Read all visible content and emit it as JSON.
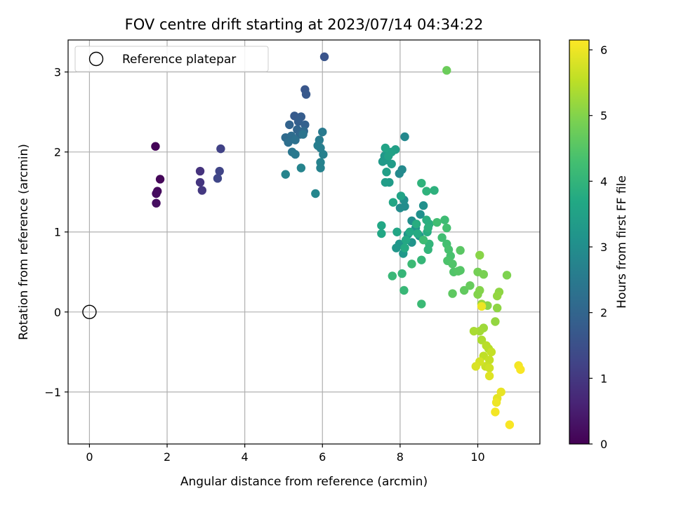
{
  "chart_data": {
    "type": "scatter",
    "title": "FOV centre drift starting at 2023/07/14 04:34:22",
    "xlabel": "Angular distance from reference (arcmin)",
    "ylabel": "Rotation from reference (arcmin)",
    "xlim": [
      -0.55,
      11.6
    ],
    "ylim": [
      -1.65,
      3.4
    ],
    "xticks": [
      0,
      2,
      4,
      6,
      8,
      10
    ],
    "xtick_labels": [
      "0",
      "2",
      "4",
      "6",
      "8",
      "10"
    ],
    "yticks": [
      -1,
      0,
      1,
      2,
      3
    ],
    "ytick_labels": [
      "−1",
      "0",
      "1",
      "2",
      "3"
    ],
    "grid": true,
    "legend": {
      "position": "top-left",
      "entries": [
        "Reference platepar"
      ]
    },
    "colorbar": {
      "label": "Hours from first FF file",
      "colormap": "viridis",
      "range": [
        0,
        6.15
      ],
      "ticks": [
        0,
        1,
        2,
        3,
        4,
        5,
        6
      ],
      "tick_labels": [
        "0",
        "1",
        "2",
        "3",
        "4",
        "5",
        "6"
      ]
    },
    "reference_point": {
      "x": 0,
      "y": 0,
      "name": "Reference platepar"
    },
    "series": [
      {
        "name": "FOV centre",
        "points": [
          [
            1.7,
            2.07,
            0.05
          ],
          [
            1.82,
            1.66,
            0.1
          ],
          [
            1.75,
            1.51,
            0.15
          ],
          [
            1.72,
            1.48,
            0.2
          ],
          [
            1.72,
            1.36,
            0.25
          ],
          [
            2.85,
            1.76,
            0.9
          ],
          [
            2.85,
            1.62,
            0.95
          ],
          [
            2.9,
            1.52,
            1.0
          ],
          [
            3.38,
            2.04,
            1.2
          ],
          [
            3.35,
            1.76,
            1.25
          ],
          [
            3.3,
            1.67,
            1.3
          ],
          [
            6.05,
            3.19,
            1.6
          ],
          [
            5.55,
            2.78,
            1.65
          ],
          [
            5.58,
            2.72,
            1.7
          ],
          [
            5.28,
            2.45,
            1.75
          ],
          [
            5.45,
            2.44,
            1.8
          ],
          [
            5.38,
            2.38,
            1.85
          ],
          [
            5.55,
            2.34,
            1.9
          ],
          [
            5.15,
            2.34,
            1.95
          ],
          [
            5.35,
            2.28,
            2.0
          ],
          [
            5.42,
            2.22,
            2.05
          ],
          [
            5.52,
            2.26,
            2.1
          ],
          [
            5.05,
            2.18,
            2.15
          ],
          [
            5.2,
            2.2,
            2.2
          ],
          [
            5.12,
            2.12,
            2.25
          ],
          [
            5.3,
            2.15,
            2.3
          ],
          [
            5.5,
            2.22,
            2.35
          ],
          [
            5.22,
            2.0,
            2.4
          ],
          [
            5.3,
            1.97,
            2.45
          ],
          [
            6.0,
            2.25,
            2.5
          ],
          [
            5.92,
            2.15,
            2.55
          ],
          [
            5.88,
            2.08,
            2.6
          ],
          [
            5.95,
            2.05,
            2.6
          ],
          [
            6.02,
            1.97,
            2.65
          ],
          [
            5.95,
            1.87,
            2.7
          ],
          [
            5.95,
            1.8,
            2.7
          ],
          [
            5.45,
            1.8,
            2.75
          ],
          [
            5.05,
            1.72,
            2.75
          ],
          [
            5.82,
            1.48,
            2.8
          ],
          [
            8.12,
            2.19,
            2.85
          ],
          [
            7.98,
            1.73,
            2.9
          ],
          [
            8.05,
            1.78,
            2.9
          ],
          [
            8.0,
            1.3,
            2.95
          ],
          [
            8.12,
            1.32,
            2.95
          ],
          [
            8.1,
            1.4,
            3.0
          ],
          [
            8.3,
            1.14,
            3.0
          ],
          [
            8.52,
            1.22,
            3.05
          ],
          [
            8.6,
            1.33,
            3.05
          ],
          [
            8.4,
            1.05,
            3.1
          ],
          [
            8.2,
            0.97,
            3.1
          ],
          [
            8.5,
            0.95,
            3.15
          ],
          [
            8.3,
            0.87,
            3.15
          ],
          [
            7.98,
            0.85,
            3.2
          ],
          [
            7.9,
            0.8,
            3.2
          ],
          [
            8.08,
            0.73,
            3.25
          ],
          [
            7.6,
            1.95,
            3.25
          ],
          [
            7.65,
            1.9,
            3.3
          ],
          [
            7.55,
            1.88,
            3.3
          ],
          [
            7.78,
            1.85,
            3.35
          ],
          [
            7.72,
            1.62,
            3.35
          ],
          [
            7.62,
            1.62,
            3.4
          ],
          [
            7.65,
            1.75,
            3.45
          ],
          [
            7.88,
            2.03,
            3.45
          ],
          [
            7.78,
            2.0,
            3.5
          ],
          [
            7.7,
            1.95,
            3.5
          ],
          [
            7.62,
            2.05,
            3.55
          ],
          [
            8.02,
            1.45,
            3.55
          ],
          [
            7.82,
            1.37,
            3.6
          ],
          [
            7.92,
            1.0,
            3.6
          ],
          [
            7.52,
            1.08,
            3.65
          ],
          [
            7.52,
            0.98,
            3.65
          ],
          [
            8.15,
            0.9,
            3.7
          ],
          [
            8.25,
            1.0,
            3.7
          ],
          [
            8.12,
            0.8,
            3.75
          ],
          [
            8.45,
            0.98,
            3.75
          ],
          [
            8.42,
            1.1,
            3.8
          ],
          [
            8.7,
            1.0,
            3.8
          ],
          [
            8.68,
            1.15,
            3.85
          ],
          [
            8.75,
            1.1,
            3.85
          ],
          [
            8.72,
            1.05,
            3.9
          ],
          [
            8.88,
            1.52,
            3.9
          ],
          [
            8.68,
            1.51,
            3.95
          ],
          [
            8.55,
            1.61,
            3.95
          ],
          [
            8.75,
            0.85,
            4.0
          ],
          [
            8.72,
            0.78,
            4.0
          ],
          [
            8.55,
            0.65,
            4.05
          ],
          [
            8.05,
            0.48,
            4.05
          ],
          [
            7.8,
            0.45,
            4.1
          ],
          [
            8.1,
            0.27,
            4.1
          ],
          [
            8.55,
            0.1,
            4.15
          ],
          [
            8.3,
            0.6,
            4.15
          ],
          [
            8.6,
            0.9,
            4.2
          ],
          [
            9.15,
            1.15,
            4.2
          ],
          [
            9.08,
            0.93,
            4.25
          ],
          [
            8.95,
            1.12,
            4.25
          ],
          [
            9.2,
            1.05,
            4.3
          ],
          [
            9.2,
            0.85,
            4.3
          ],
          [
            9.25,
            0.78,
            4.35
          ],
          [
            9.3,
            0.7,
            4.35
          ],
          [
            9.22,
            0.64,
            4.4
          ],
          [
            9.35,
            0.6,
            4.45
          ],
          [
            9.38,
            0.5,
            4.45
          ],
          [
            9.5,
            0.51,
            4.5
          ],
          [
            9.55,
            0.52,
            4.5
          ],
          [
            9.55,
            0.77,
            4.55
          ],
          [
            9.35,
            0.23,
            4.6
          ],
          [
            9.65,
            0.27,
            4.65
          ],
          [
            9.8,
            0.33,
            4.7
          ],
          [
            9.2,
            3.02,
            4.75
          ],
          [
            10.0,
            0.5,
            4.85
          ],
          [
            10.15,
            0.47,
            4.9
          ],
          [
            10.75,
            0.46,
            4.95
          ],
          [
            10.0,
            0.22,
            5.0
          ],
          [
            10.05,
            0.27,
            5.0
          ],
          [
            10.25,
            0.08,
            5.05
          ],
          [
            10.05,
            0.71,
            5.05
          ],
          [
            10.5,
            0.05,
            5.1
          ],
          [
            10.45,
            -0.12,
            5.15
          ],
          [
            10.55,
            0.25,
            5.1
          ],
          [
            10.5,
            0.2,
            5.15
          ],
          [
            10.1,
            0.1,
            5.2
          ],
          [
            10.15,
            -0.2,
            5.25
          ],
          [
            10.05,
            -0.24,
            5.3
          ],
          [
            9.9,
            -0.24,
            5.35
          ],
          [
            10.1,
            -0.35,
            5.4
          ],
          [
            10.28,
            -0.46,
            5.45
          ],
          [
            10.22,
            -0.42,
            5.5
          ],
          [
            10.15,
            -0.55,
            5.55
          ],
          [
            10.3,
            -0.6,
            5.6
          ],
          [
            10.35,
            -0.5,
            5.6
          ],
          [
            10.2,
            -0.68,
            5.65
          ],
          [
            10.3,
            -0.7,
            5.7
          ],
          [
            10.05,
            -0.62,
            5.75
          ],
          [
            9.95,
            -0.68,
            5.8
          ],
          [
            10.3,
            -0.8,
            5.85
          ],
          [
            10.5,
            -1.08,
            5.9
          ],
          [
            10.6,
            -1.0,
            5.95
          ],
          [
            10.48,
            -1.13,
            6.0
          ],
          [
            10.45,
            -1.25,
            6.05
          ],
          [
            10.82,
            -1.41,
            6.1
          ],
          [
            11.05,
            -0.67,
            6.05
          ],
          [
            11.1,
            -0.72,
            6.1
          ],
          [
            10.1,
            0.07,
            6.0
          ]
        ]
      }
    ]
  }
}
